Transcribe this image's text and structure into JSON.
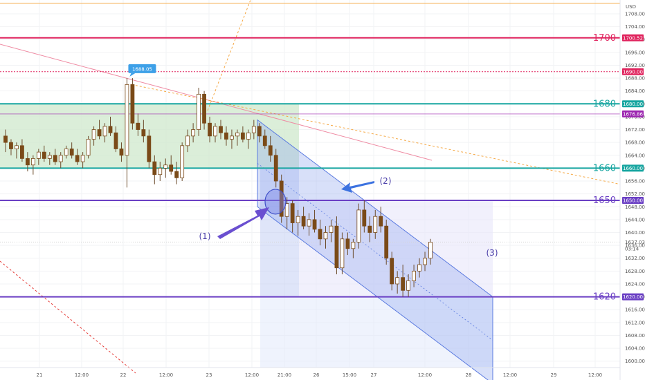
{
  "chart_data": {
    "type": "candlestick",
    "currency": "USD",
    "price_axis_ticks": [
      1708.0,
      1704.0,
      1700.0,
      1696.0,
      1692.0,
      1688.0,
      1684.0,
      1680.0,
      1676.0,
      1672.0,
      1668.0,
      1664.0,
      1660.0,
      1656.0,
      1652.0,
      1648.0,
      1644.0,
      1640.0,
      1636.0,
      1632.0,
      1628.0,
      1624.0,
      1620.0,
      1616.0,
      1612.0,
      1608.0,
      1604.0,
      1600.0
    ],
    "ylim": [
      1598,
      1711
    ],
    "time_axis_ticks": [
      "21",
      "12:00",
      "22",
      "12:00",
      "23",
      "12:00",
      "21:00",
      "26",
      "15:00",
      "27",
      "12:00",
      "28",
      "12:00",
      "29",
      "12:00"
    ],
    "levels": [
      {
        "label": "1700",
        "badge": "1700.52",
        "price": 1700.52,
        "color": "#e0245e"
      },
      {
        "label": "",
        "badge": "1690.00",
        "price": 1690.0,
        "color": "#e0245e",
        "style": "dotted"
      },
      {
        "label": "1680",
        "badge": "1680.00",
        "price": 1680.0,
        "color": "#16a5a0"
      },
      {
        "label": "",
        "badge": "1676.86",
        "price": 1676.86,
        "color": "#9c27b0",
        "style": "thin"
      },
      {
        "label": "1660",
        "badge": "1660.00",
        "price": 1660.0,
        "color": "#16a5a0"
      },
      {
        "label": "1650",
        "badge": "1650.00",
        "price": 1650.0,
        "color": "#6a3fc4"
      },
      {
        "label": "1620",
        "badge": "1620.00",
        "price": 1620.0,
        "color": "#6a3fc4"
      }
    ],
    "current_price": {
      "value": "1637.03",
      "countdown": "03:14"
    },
    "peak_label": "1688.05",
    "annotations": {
      "a1": "(1)",
      "a2": "(2)",
      "a3": "(3)"
    },
    "candles": [
      [
        1670,
        1672,
        1665,
        1668
      ],
      [
        1668,
        1669,
        1664,
        1666
      ],
      [
        1666,
        1668,
        1663,
        1667
      ],
      [
        1667,
        1669,
        1662,
        1663
      ],
      [
        1663,
        1665,
        1659,
        1661
      ],
      [
        1661,
        1664,
        1658,
        1663
      ],
      [
        1663,
        1666,
        1661,
        1665
      ],
      [
        1665,
        1667,
        1662,
        1663
      ],
      [
        1663,
        1665,
        1661,
        1664
      ],
      [
        1664,
        1666,
        1661,
        1662
      ],
      [
        1662,
        1665,
        1660,
        1664
      ],
      [
        1664,
        1667,
        1663,
        1666
      ],
      [
        1666,
        1668,
        1663,
        1664
      ],
      [
        1664,
        1666,
        1661,
        1662
      ],
      [
        1662,
        1665,
        1660,
        1664
      ],
      [
        1664,
        1670,
        1663,
        1669
      ],
      [
        1669,
        1673,
        1667,
        1672
      ],
      [
        1672,
        1675,
        1669,
        1670
      ],
      [
        1670,
        1674,
        1668,
        1673
      ],
      [
        1673,
        1676,
        1670,
        1671
      ],
      [
        1671,
        1673,
        1665,
        1666
      ],
      [
        1666,
        1668,
        1662,
        1664
      ],
      [
        1664,
        1688.05,
        1654,
        1686
      ],
      [
        1686,
        1688,
        1672,
        1674
      ],
      [
        1674,
        1677,
        1670,
        1672
      ],
      [
        1672,
        1675,
        1668,
        1670
      ],
      [
        1670,
        1672,
        1660,
        1662
      ],
      [
        1662,
        1664,
        1655,
        1658
      ],
      [
        1658,
        1662,
        1656,
        1660
      ],
      [
        1660,
        1663,
        1657,
        1661
      ],
      [
        1661,
        1664,
        1658,
        1659
      ],
      [
        1659,
        1662,
        1655,
        1657
      ],
      [
        1657,
        1668,
        1656,
        1667
      ],
      [
        1667,
        1672,
        1665,
        1670
      ],
      [
        1670,
        1674,
        1668,
        1672
      ],
      [
        1672,
        1685,
        1670,
        1683
      ],
      [
        1683,
        1684,
        1672,
        1674
      ],
      [
        1674,
        1676,
        1668,
        1670
      ],
      [
        1670,
        1674,
        1668,
        1673
      ],
      [
        1673,
        1675,
        1669,
        1671
      ],
      [
        1671,
        1673,
        1667,
        1669
      ],
      [
        1669,
        1672,
        1666,
        1670
      ],
      [
        1670,
        1672,
        1667,
        1671
      ],
      [
        1671,
        1673,
        1668,
        1669
      ],
      [
        1669,
        1672,
        1666,
        1671
      ],
      [
        1671,
        1675,
        1669,
        1673
      ],
      [
        1673,
        1674,
        1668,
        1670
      ],
      [
        1670,
        1672,
        1666,
        1667
      ],
      [
        1667,
        1670,
        1662,
        1664
      ],
      [
        1664,
        1666,
        1654,
        1656
      ],
      [
        1656,
        1658,
        1643,
        1645
      ],
      [
        1645,
        1651,
        1641,
        1649
      ],
      [
        1649,
        1650,
        1640,
        1643
      ],
      [
        1643,
        1647,
        1639,
        1645
      ],
      [
        1645,
        1648,
        1641,
        1642
      ],
      [
        1642,
        1646,
        1639,
        1644
      ],
      [
        1644,
        1647,
        1640,
        1641
      ],
      [
        1641,
        1644,
        1636,
        1638
      ],
      [
        1638,
        1642,
        1635,
        1640
      ],
      [
        1640,
        1644,
        1637,
        1642
      ],
      [
        1642,
        1645,
        1627,
        1629
      ],
      [
        1629,
        1640,
        1627,
        1638
      ],
      [
        1638,
        1640,
        1633,
        1635
      ],
      [
        1635,
        1638,
        1632,
        1637
      ],
      [
        1637,
        1649,
        1635,
        1647
      ],
      [
        1647,
        1650,
        1640,
        1642
      ],
      [
        1642,
        1645,
        1637,
        1640
      ],
      [
        1640,
        1647,
        1638,
        1645
      ],
      [
        1645,
        1648,
        1640,
        1642
      ],
      [
        1642,
        1644,
        1630,
        1632
      ],
      [
        1632,
        1634,
        1622,
        1624
      ],
      [
        1624,
        1628,
        1621,
        1626
      ],
      [
        1626,
        1630,
        1620,
        1622
      ],
      [
        1622,
        1627,
        1620,
        1625
      ],
      [
        1625,
        1630,
        1623,
        1628
      ],
      [
        1628,
        1632,
        1626,
        1630
      ],
      [
        1630,
        1634,
        1628,
        1632
      ],
      [
        1632,
        1638,
        1630,
        1637
      ]
    ]
  }
}
